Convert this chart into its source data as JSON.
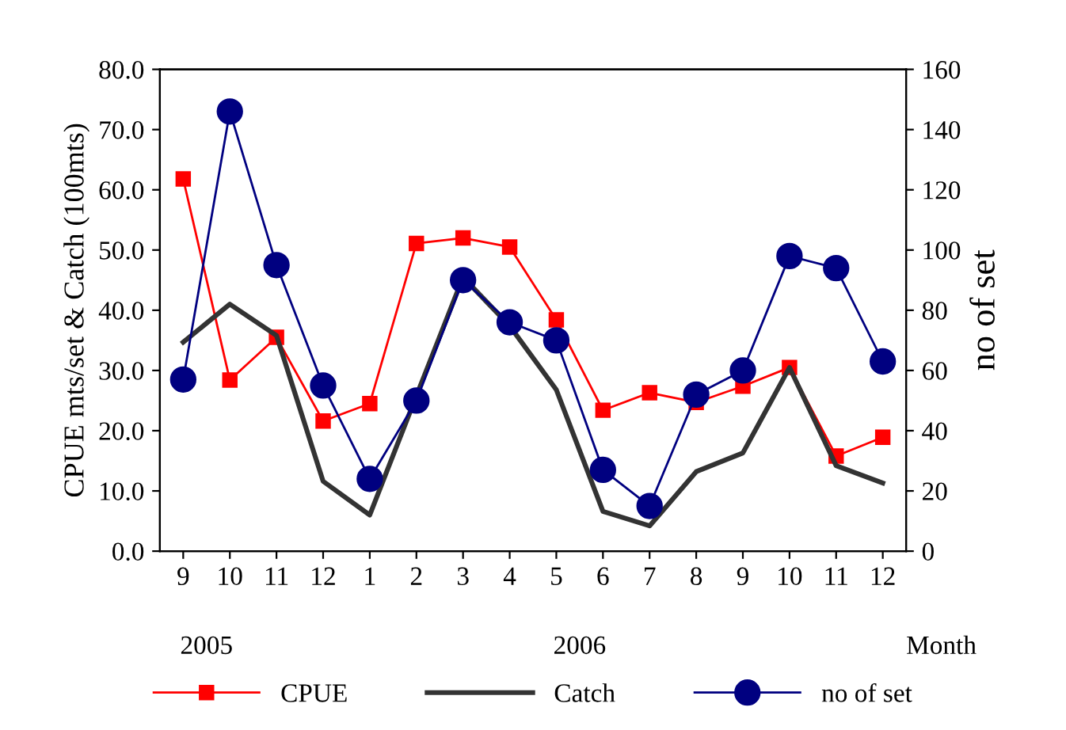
{
  "chart_data": {
    "type": "line",
    "ylabel": "CPUE mts/set & Catch (100mts)",
    "y2label": "no of set",
    "xlabel": "Month",
    "categories": [
      "9",
      "10",
      "11",
      "12",
      "1",
      "2",
      "3",
      "4",
      "5",
      "6",
      "7",
      "8",
      "9",
      "10",
      "11",
      "12"
    ],
    "annotations": [
      "2005",
      "2006"
    ],
    "series": [
      {
        "name": "CPUE",
        "color": "#ff0000",
        "marker": "square",
        "values": [
          61.8,
          28.4,
          35.5,
          21.6,
          24.5,
          51.1,
          52.0,
          50.5,
          38.4,
          23.4,
          26.3,
          24.7,
          27.4,
          30.5,
          15.8,
          18.9
        ]
      },
      {
        "name": "Catch",
        "color": "#333333",
        "marker": "none",
        "values": [
          34.7,
          41.0,
          35.8,
          11.6,
          6.0,
          25.8,
          45.5,
          37.4,
          26.8,
          6.6,
          4.2,
          13.2,
          16.3,
          30.5,
          14.2,
          11.3
        ]
      },
      {
        "name": "no of set",
        "color": "#000080",
        "marker": "circle",
        "axis": "y2",
        "values": [
          57,
          146,
          95,
          55,
          24,
          50,
          90,
          76,
          70,
          27,
          15,
          52,
          60,
          98,
          94,
          63
        ]
      }
    ],
    "ylim": [
      0,
      80
    ],
    "yticks": [
      {
        "value": 0,
        "label": "0.0"
      },
      {
        "value": 10,
        "label": "10.0"
      },
      {
        "value": 20,
        "label": "20.0"
      },
      {
        "value": 30,
        "label": "30.0"
      },
      {
        "value": 40,
        "label": "40.0"
      },
      {
        "value": 50,
        "label": "50.0"
      },
      {
        "value": 60,
        "label": "60.0"
      },
      {
        "value": 70,
        "label": "70.0"
      },
      {
        "value": 80,
        "label": "80.0"
      }
    ],
    "y2lim": [
      0,
      160
    ],
    "y2ticks": [
      0,
      20,
      40,
      60,
      80,
      100,
      120,
      140,
      160
    ],
    "legend": "bottom",
    "grid": false
  }
}
